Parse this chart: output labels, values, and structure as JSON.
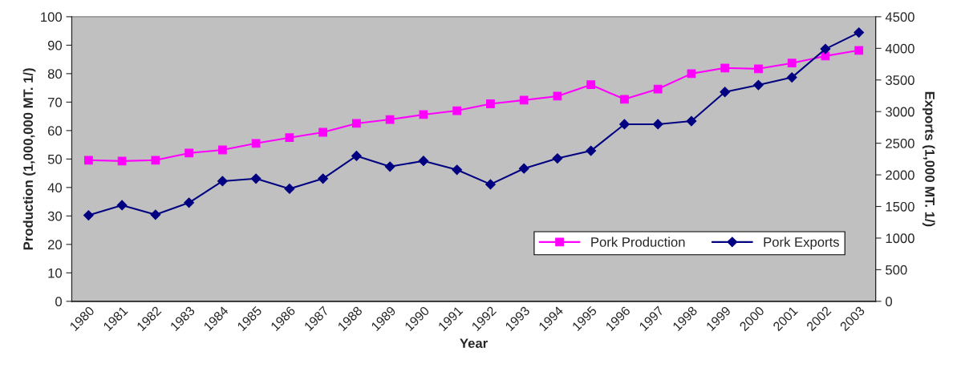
{
  "chart_data": {
    "type": "line",
    "xlabel": "Year",
    "ylabel": "Production (1,000,000 MT. 1/)",
    "y2label": "Exports (1,000 MT. 1/)",
    "categories": [
      "1980",
      "1981",
      "1982",
      "1983",
      "1984",
      "1985",
      "1986",
      "1987",
      "1988",
      "1989",
      "1990",
      "1991",
      "1992",
      "1993",
      "1994",
      "1995",
      "1996",
      "1997",
      "1998",
      "1999",
      "2000",
      "2001",
      "2002",
      "2003"
    ],
    "series": [
      {
        "name": "Pork Production",
        "color": "#ff00ff",
        "marker": "square",
        "values": [
          49.6,
          49.3,
          49.6,
          52.1,
          53.2,
          55.5,
          57.5,
          59.4,
          62.5,
          63.9,
          65.6,
          67.0,
          69.4,
          70.7,
          72.1,
          76.1,
          71.0,
          74.6,
          80.0,
          82.0,
          81.7,
          83.7,
          86.2,
          88.2
        ]
      },
      {
        "name": "Pork Exports",
        "color": "#000080",
        "marker": "diamond",
        "axis": "y2",
        "values": [
          1360,
          1520,
          1370,
          1560,
          1900,
          1940,
          1780,
          1940,
          2300,
          2130,
          2220,
          2080,
          1850,
          2100,
          2260,
          2380,
          2800,
          2800,
          2850,
          3310,
          3420,
          3540,
          3990,
          4250
        ]
      }
    ],
    "ylim": [
      0,
      100
    ],
    "yticks": [
      0,
      10,
      20,
      30,
      40,
      50,
      60,
      70,
      80,
      90,
      100
    ],
    "y2lim": [
      0,
      4500
    ],
    "y2ticks": [
      0,
      500,
      1000,
      1500,
      2000,
      2500,
      3000,
      3500,
      4000,
      4500
    ],
    "grid": false,
    "legend": "bottom right",
    "line_style": "solid"
  }
}
